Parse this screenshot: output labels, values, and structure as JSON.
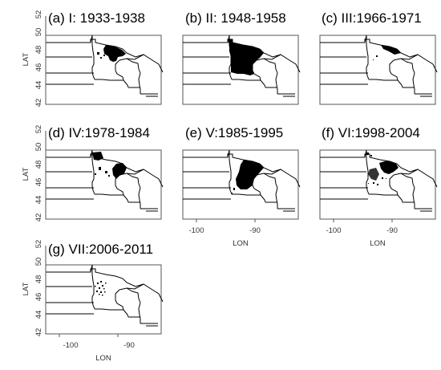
{
  "figure": {
    "panels": [
      {
        "title": "(a) I: 1933-1938"
      },
      {
        "title": "(b) II: 1948-1958"
      },
      {
        "title": "(c) III:1966-1971"
      },
      {
        "title": "(d) IV:1978-1984"
      },
      {
        "title": "(e) V:1985-1995"
      },
      {
        "title": "(f) VI:1998-2004"
      },
      {
        "title": "(g) VII:2006-2011"
      }
    ],
    "y_axis": {
      "label": "LAT",
      "ticks": [
        "42",
        "44",
        "46",
        "48",
        "50",
        "52"
      ]
    },
    "x_axis": {
      "label": "LON",
      "ticks": [
        "-100",
        "-90"
      ]
    },
    "colors": {
      "outbreak": "#000000",
      "border": "#000000",
      "frame": "#555555"
    }
  }
}
